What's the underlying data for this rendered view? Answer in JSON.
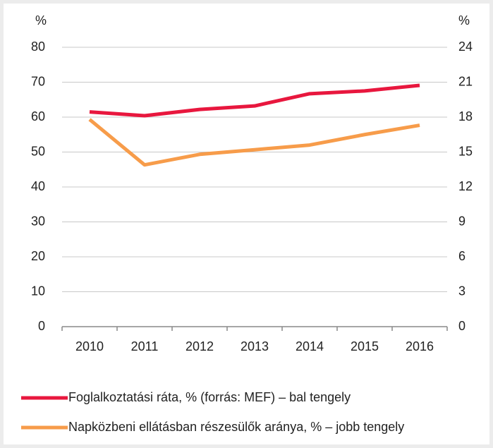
{
  "chart_data": {
    "type": "line",
    "ylabel": "%",
    "y2label": "%",
    "categories": [
      "2010",
      "2011",
      "2012",
      "2013",
      "2014",
      "2015",
      "2016"
    ],
    "series": [
      {
        "name": "Foglalkoztatási ráta, % (forrás: MEF) – bal tengely",
        "color": "#e8173e",
        "values": [
          61.5,
          60.4,
          62.2,
          63.2,
          66.7,
          67.5,
          69.1
        ]
      },
      {
        "name": "Napközbeni ellátásban részesülők aránya, % – jobb tengely",
        "color": "#f79c4a",
        "axis": "y2",
        "values": [
          17.8,
          13.9,
          14.8,
          15.2,
          15.6,
          16.5,
          17.3
        ]
      }
    ],
    "ylim": [
      0,
      80
    ],
    "yticks": [
      0,
      10,
      20,
      30,
      40,
      50,
      60,
      70,
      80
    ],
    "y2lim": [
      0,
      24
    ],
    "y2ticks": [
      0,
      3,
      6,
      9,
      12,
      15,
      18,
      21,
      24
    ],
    "grid": true
  }
}
